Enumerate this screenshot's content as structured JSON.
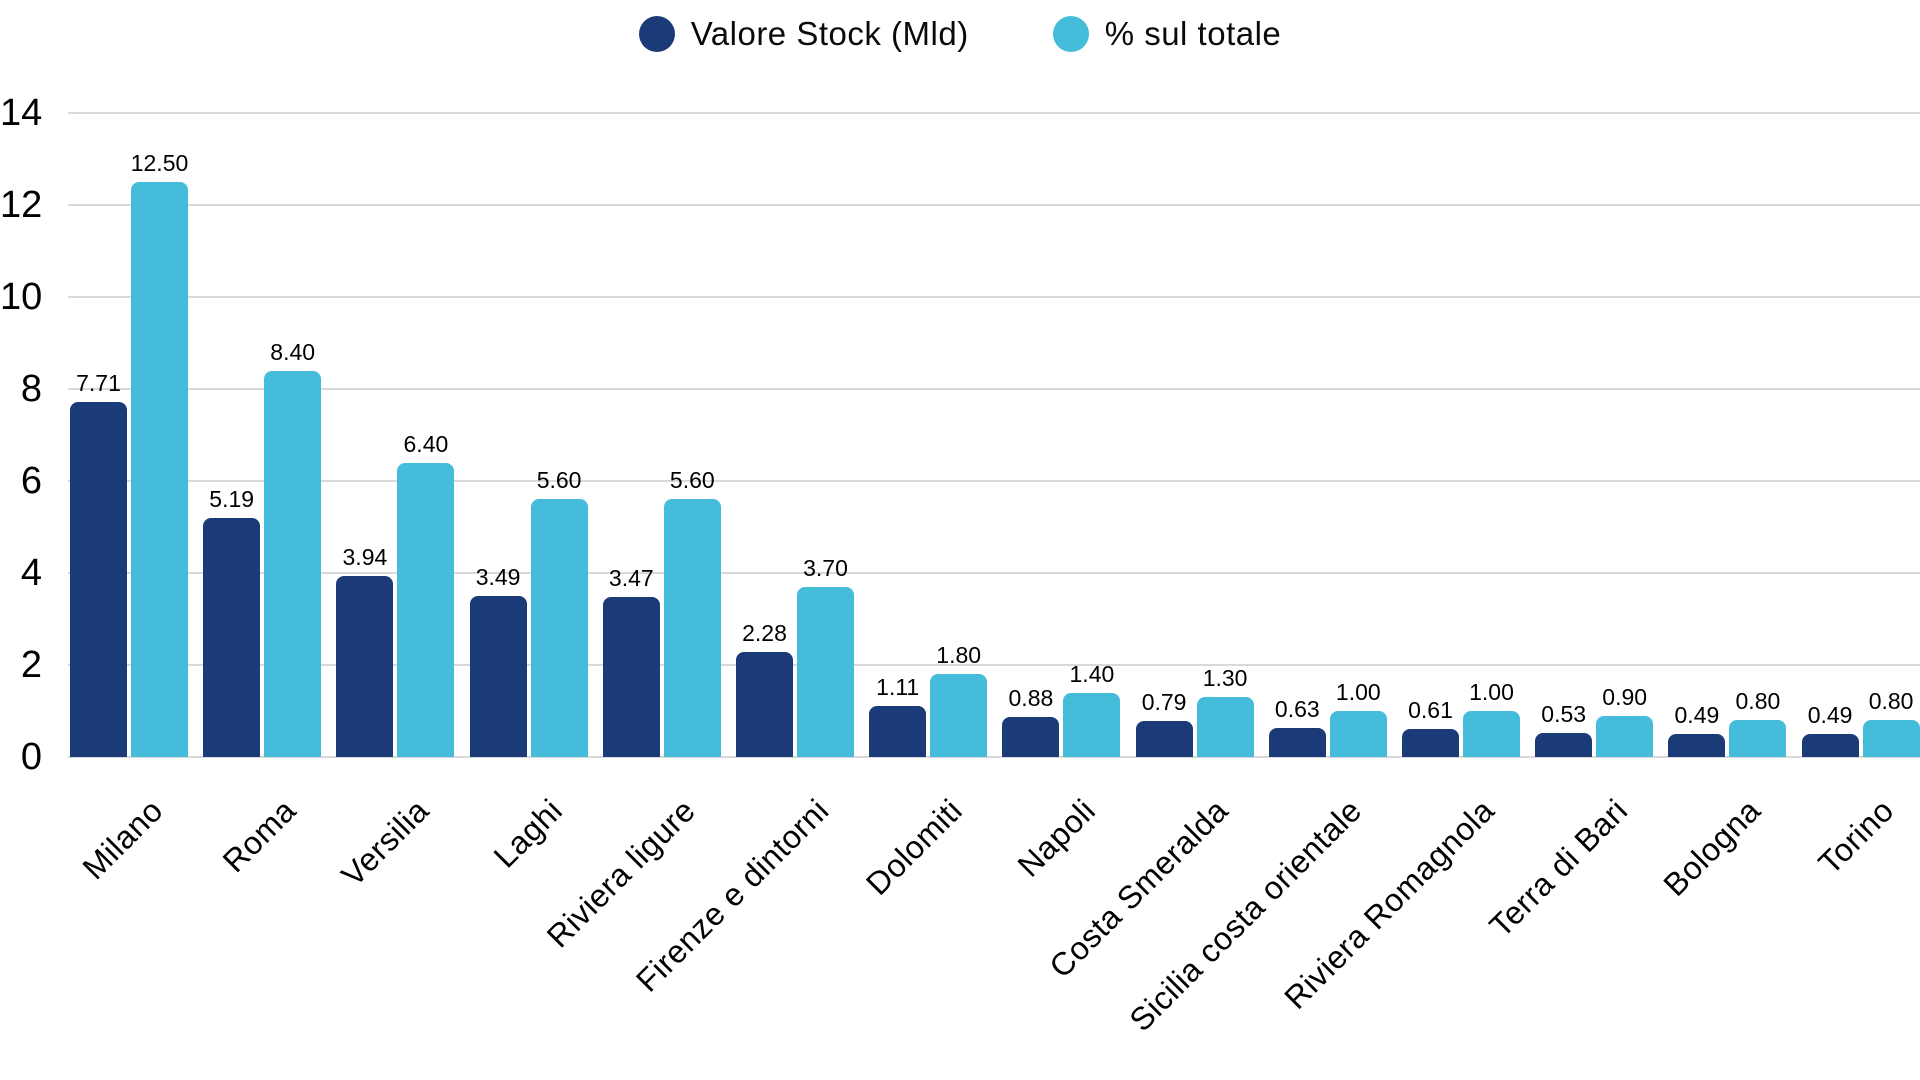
{
  "chart_data": {
    "type": "bar",
    "title": "",
    "xlabel": "",
    "ylabel": "",
    "categories": [
      "Milano",
      "Roma",
      "Versilia",
      "Laghi",
      "Riviera ligure",
      "Firenze e dintorni",
      "Dolomiti",
      "Napoli",
      "Costa Smeralda",
      "Sicilia costa orientale",
      "Riviera Romagnola",
      "Terra di Bari",
      "Bologna",
      "Torino"
    ],
    "series": [
      {
        "name": "Valore Stock (Mld)",
        "color": "#1a3a78",
        "values": [
          7.71,
          5.19,
          3.94,
          3.49,
          3.47,
          2.28,
          1.11,
          0.88,
          0.79,
          0.63,
          0.61,
          0.53,
          0.49,
          0.49
        ],
        "labels": [
          "7.71",
          "5.19",
          "3.94",
          "3.49",
          "3.47",
          "2.28",
          "1.11",
          "0.88",
          "0.79",
          "0.63",
          "0.61",
          "0.53",
          "0.49",
          "0.49"
        ]
      },
      {
        "name": "% sul totale",
        "color": "#45bcd9",
        "values": [
          12.5,
          8.4,
          6.4,
          5.6,
          5.6,
          3.7,
          1.8,
          1.4,
          1.3,
          1.0,
          1.0,
          0.9,
          0.8,
          0.8
        ],
        "labels": [
          "12.50",
          "8.40",
          "6.40",
          "5.60",
          "5.60",
          "3.70",
          "1.80",
          "1.40",
          "1.30",
          "1.00",
          "1.00",
          "0.90",
          "0.80",
          "0.80"
        ]
      }
    ],
    "ylim": [
      0,
      14
    ],
    "yticks": [
      0,
      2,
      4,
      6,
      8,
      10,
      12,
      14
    ],
    "ytick_labels": [
      "0",
      "2",
      "4",
      "6",
      "8",
      "10",
      "12",
      "14"
    ],
    "grid": true,
    "gridline_color": "#d9d9d9",
    "legend_position": "top",
    "x_label_rotation_deg": 45
  }
}
